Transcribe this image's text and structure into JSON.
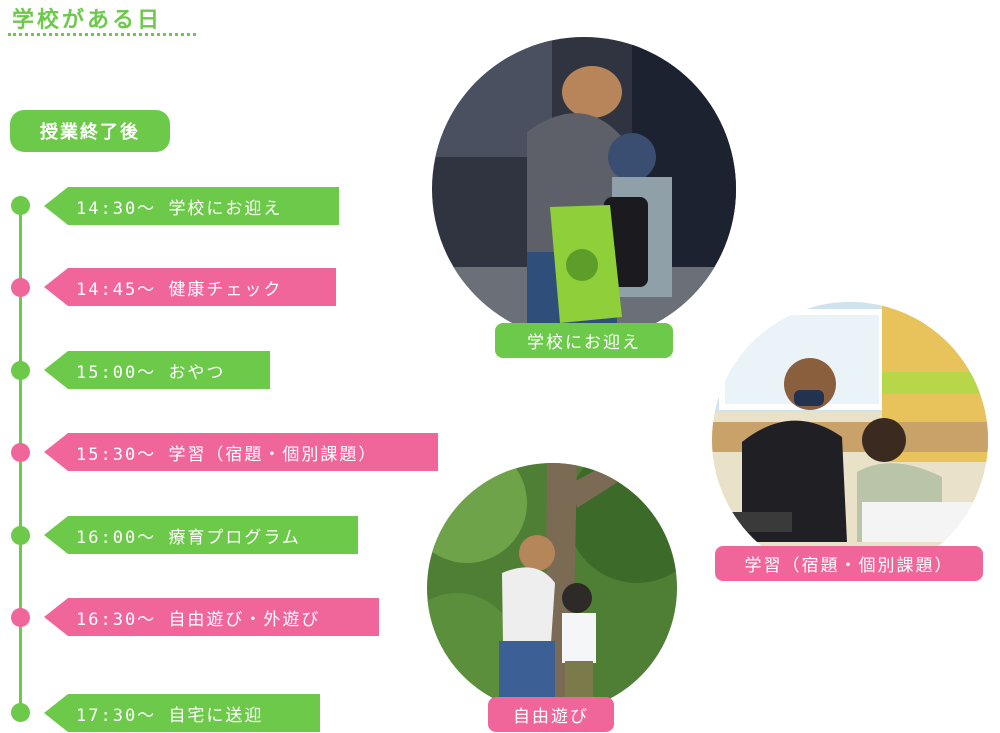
{
  "title": "学校がある日",
  "section_label": "授業終了後",
  "schedule": [
    {
      "time": "14:30〜",
      "activity": "学校にお迎え",
      "color": "#6cc94a"
    },
    {
      "time": "14:45〜",
      "activity": "健康チェック",
      "color": "#f0669b"
    },
    {
      "time": "15:00〜",
      "activity": "おやつ",
      "color": "#6cc94a"
    },
    {
      "time": "15:30〜",
      "activity": "学習（宿題・個別課題）",
      "color": "#f0669b"
    },
    {
      "time": "16:00〜",
      "activity": "療育プログラム",
      "color": "#6cc94a"
    },
    {
      "time": "16:30〜",
      "activity": "自由遊び・外遊び",
      "color": "#f0669b"
    },
    {
      "time": "17:30〜",
      "activity": "自宅に送迎",
      "color": "#6cc94a"
    }
  ],
  "photos": {
    "pickup": {
      "caption": "学校にお迎え"
    },
    "study": {
      "caption": "学習（宿題・個別課題）"
    },
    "play": {
      "caption": "自由遊び"
    }
  },
  "colors": {
    "accent_green": "#6cc94a",
    "accent_pink": "#f0669b"
  }
}
